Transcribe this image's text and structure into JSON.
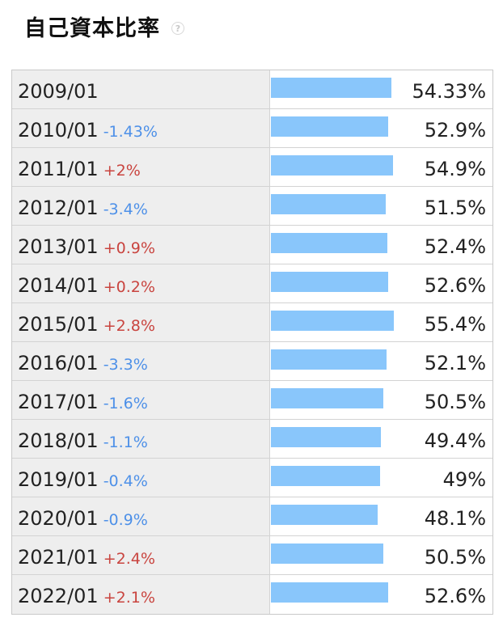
{
  "header": {
    "title": "自己資本比率",
    "help_icon": "question-circle-icon",
    "help_glyph": "?"
  },
  "colors": {
    "bar": "#89c6fb",
    "decrease": "#4d90e8",
    "increase": "#c9443f",
    "label_bg": "#eeeeee"
  },
  "chart_data": {
    "type": "bar",
    "orientation": "horizontal",
    "title": "自己資本比率",
    "xlabel": "",
    "ylabel": "",
    "value_range": [
      0,
      100
    ],
    "grid": false,
    "legend": "none",
    "rows": [
      {
        "category": "2009/01",
        "change": "",
        "value": 54.33,
        "value_label": "54.33%"
      },
      {
        "category": "2010/01",
        "change": "-1.43%",
        "value": 52.9,
        "value_label": "52.9%"
      },
      {
        "category": "2011/01",
        "change": "+2%",
        "value": 54.9,
        "value_label": "54.9%"
      },
      {
        "category": "2012/01",
        "change": "-3.4%",
        "value": 51.5,
        "value_label": "51.5%"
      },
      {
        "category": "2013/01",
        "change": "+0.9%",
        "value": 52.4,
        "value_label": "52.4%"
      },
      {
        "category": "2014/01",
        "change": "+0.2%",
        "value": 52.6,
        "value_label": "52.6%"
      },
      {
        "category": "2015/01",
        "change": "+2.8%",
        "value": 55.4,
        "value_label": "55.4%"
      },
      {
        "category": "2016/01",
        "change": "-3.3%",
        "value": 52.1,
        "value_label": "52.1%"
      },
      {
        "category": "2017/01",
        "change": "-1.6%",
        "value": 50.5,
        "value_label": "50.5%"
      },
      {
        "category": "2018/01",
        "change": "-1.1%",
        "value": 49.4,
        "value_label": "49.4%"
      },
      {
        "category": "2019/01",
        "change": "-0.4%",
        "value": 49,
        "value_label": "49%"
      },
      {
        "category": "2020/01",
        "change": "-0.9%",
        "value": 48.1,
        "value_label": "48.1%"
      },
      {
        "category": "2021/01",
        "change": "+2.4%",
        "value": 50.5,
        "value_label": "50.5%"
      },
      {
        "category": "2022/01",
        "change": "+2.1%",
        "value": 52.6,
        "value_label": "52.6%"
      }
    ]
  }
}
